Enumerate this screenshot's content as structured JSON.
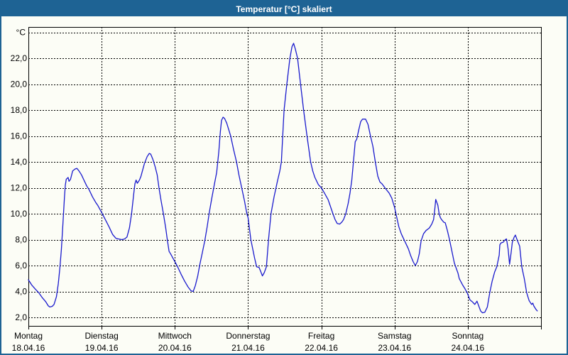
{
  "window": {
    "title": "Temperatur [°C] skaliert",
    "colors": {
      "title_bar": "#1E6394",
      "window_border": "#1E6394",
      "background": "#FCFDF6"
    }
  },
  "chart_data": {
    "type": "line",
    "title": "Temperatur [°C] skaliert",
    "ylabel": "",
    "xlabel": "",
    "grid": "dashed",
    "legend": "none",
    "line_color": "#1A1ACD",
    "grid_color": "#000000",
    "x_unit": "hours_since_monday_00h",
    "x_domain_hours": [
      0,
      168
    ],
    "ylim": [
      1.3,
      24.4
    ],
    "y_axis": {
      "unit_label": "°C",
      "gridline_step": 2,
      "tick_labels": [
        "22,0",
        "20,0",
        "18,0",
        "16,0",
        "14,0",
        "12,0",
        "10,0",
        "8,0",
        "6,0",
        "4,0",
        "2,0"
      ],
      "tick_values": [
        22,
        20,
        18,
        16,
        14,
        12,
        10,
        8,
        6,
        4,
        2
      ],
      "top_gridline_value": 24
    },
    "x_axis": {
      "days": [
        {
          "name": "Montag",
          "date": "18.04.16"
        },
        {
          "name": "Dienstag",
          "date": "19.04.16"
        },
        {
          "name": "Mittwoch",
          "date": "20.04.16"
        },
        {
          "name": "Donnerstag",
          "date": "21.04.16"
        },
        {
          "name": "Freitag",
          "date": "22.04.16"
        },
        {
          "name": "Samstag",
          "date": "23.04.16"
        },
        {
          "name": "Sonntag",
          "date": "24.04.16"
        }
      ]
    },
    "series": [
      {
        "name": "Temperatur",
        "points": [
          [
            0,
            4.9
          ],
          [
            1.1,
            4.5
          ],
          [
            2.2,
            4.2
          ],
          [
            3.4,
            3.9
          ],
          [
            4.6,
            3.5
          ],
          [
            5.7,
            3.2
          ],
          [
            6.5,
            2.9
          ],
          [
            7,
            2.8
          ],
          [
            7.8,
            2.85
          ],
          [
            8.4,
            3
          ],
          [
            9.2,
            3.6
          ],
          [
            9.8,
            4.6
          ],
          [
            10.3,
            5.8
          ],
          [
            10.8,
            7.2
          ],
          [
            11.3,
            9.2
          ],
          [
            11.8,
            11.2
          ],
          [
            12.1,
            12.2
          ],
          [
            12.4,
            12.65
          ],
          [
            13,
            12.8
          ],
          [
            13.3,
            12.5
          ],
          [
            13.8,
            12.65
          ],
          [
            14.5,
            13.3
          ],
          [
            15.3,
            13.45
          ],
          [
            15.9,
            13.5
          ],
          [
            16.6,
            13.3
          ],
          [
            17.4,
            13
          ],
          [
            18.2,
            12.6
          ],
          [
            19.1,
            12.15
          ],
          [
            19.9,
            11.85
          ],
          [
            21,
            11.3
          ],
          [
            22,
            10.9
          ],
          [
            22.7,
            10.65
          ],
          [
            23.4,
            10.35
          ],
          [
            24,
            10.1
          ],
          [
            25.2,
            9.55
          ],
          [
            26.4,
            9
          ],
          [
            27.6,
            8.4
          ],
          [
            28.7,
            8.1
          ],
          [
            29.6,
            8.05
          ],
          [
            30.6,
            8
          ],
          [
            31.5,
            8.05
          ],
          [
            32.3,
            8.2
          ],
          [
            33.1,
            8.9
          ],
          [
            33.8,
            10
          ],
          [
            34.5,
            11.5
          ],
          [
            34.9,
            12.3
          ],
          [
            35.3,
            12.6
          ],
          [
            35.7,
            12.35
          ],
          [
            36.4,
            12.6
          ],
          [
            36.9,
            12.9
          ],
          [
            38,
            13.85
          ],
          [
            38.9,
            14.4
          ],
          [
            39.6,
            14.65
          ],
          [
            40.1,
            14.6
          ],
          [
            40.8,
            14.2
          ],
          [
            41.5,
            13.65
          ],
          [
            42.2,
            13
          ],
          [
            42.8,
            12
          ],
          [
            43.5,
            11
          ],
          [
            44.2,
            10.05
          ],
          [
            45,
            8.9
          ],
          [
            45.5,
            8.05
          ],
          [
            46.1,
            7.1
          ],
          [
            46.6,
            6.9
          ],
          [
            47.3,
            6.6
          ],
          [
            48,
            6.3
          ],
          [
            48.9,
            5.9
          ],
          [
            50,
            5.35
          ],
          [
            51.2,
            4.8
          ],
          [
            52.3,
            4.35
          ],
          [
            53.3,
            4.05
          ],
          [
            54,
            4
          ],
          [
            54.7,
            4.45
          ],
          [
            55.5,
            5.2
          ],
          [
            56.2,
            6.1
          ],
          [
            57,
            7
          ],
          [
            57.8,
            7.9
          ],
          [
            58.6,
            9
          ],
          [
            59.3,
            10.1
          ],
          [
            60.1,
            11.2
          ],
          [
            60.9,
            12.2
          ],
          [
            61.7,
            13.2
          ],
          [
            62.4,
            14.8
          ],
          [
            62.9,
            16.3
          ],
          [
            63.3,
            17.2
          ],
          [
            63.8,
            17.45
          ],
          [
            64.3,
            17.35
          ],
          [
            65,
            17
          ],
          [
            66.3,
            16
          ],
          [
            67.2,
            15
          ],
          [
            68.2,
            14
          ],
          [
            69,
            13
          ],
          [
            69.9,
            12
          ],
          [
            70.8,
            11
          ],
          [
            71.6,
            10
          ],
          [
            72,
            9.7
          ],
          [
            72.9,
            8
          ],
          [
            74.1,
            6.6
          ],
          [
            74.8,
            5.9
          ],
          [
            75.6,
            5.85
          ],
          [
            76.2,
            5.5
          ],
          [
            76.7,
            5.2
          ],
          [
            77.3,
            5.45
          ],
          [
            78,
            5.9
          ],
          [
            78.3,
            6.8
          ],
          [
            78.7,
            8
          ],
          [
            79.5,
            10
          ],
          [
            80.5,
            11.3
          ],
          [
            81.5,
            12.4
          ],
          [
            82.4,
            13.3
          ],
          [
            82.9,
            14
          ],
          [
            83.3,
            15.8
          ],
          [
            83.8,
            18
          ],
          [
            84.7,
            20
          ],
          [
            85.7,
            22
          ],
          [
            86.4,
            22.9
          ],
          [
            86.9,
            23.15
          ],
          [
            87.5,
            22.7
          ],
          [
            88.2,
            22
          ],
          [
            89.2,
            20
          ],
          [
            90.2,
            18
          ],
          [
            91.3,
            16
          ],
          [
            92.5,
            14
          ],
          [
            93.2,
            13.3
          ],
          [
            93.9,
            12.8
          ],
          [
            95,
            12.25
          ],
          [
            96,
            12
          ],
          [
            97,
            11.6
          ],
          [
            98.2,
            11.1
          ],
          [
            99,
            10.55
          ],
          [
            99.8,
            10
          ],
          [
            100.5,
            9.55
          ],
          [
            101.2,
            9.25
          ],
          [
            102,
            9.2
          ],
          [
            102.7,
            9.35
          ],
          [
            103.3,
            9.55
          ],
          [
            104,
            10
          ],
          [
            104.8,
            10.8
          ],
          [
            105.4,
            11.6
          ],
          [
            106,
            12.6
          ],
          [
            106.6,
            14.2
          ],
          [
            107.1,
            15.55
          ],
          [
            107.6,
            15.75
          ],
          [
            108.2,
            16.4
          ],
          [
            108.9,
            17.1
          ],
          [
            109.5,
            17.3
          ],
          [
            110.5,
            17.3
          ],
          [
            111.3,
            16.9
          ],
          [
            112.1,
            16
          ],
          [
            112.9,
            15.2
          ],
          [
            113.7,
            14
          ],
          [
            114.5,
            12.9
          ],
          [
            115.2,
            12.45
          ],
          [
            115.9,
            12.3
          ],
          [
            117,
            11.95
          ],
          [
            118.2,
            11.6
          ],
          [
            119.1,
            11.2
          ],
          [
            119.6,
            10.8
          ],
          [
            120,
            10.5
          ],
          [
            120.7,
            9.75
          ],
          [
            121.4,
            9
          ],
          [
            122.2,
            8.45
          ],
          [
            123.3,
            7.9
          ],
          [
            124.5,
            7.3
          ],
          [
            125.3,
            6.75
          ],
          [
            126.1,
            6.3
          ],
          [
            126.8,
            6
          ],
          [
            127.5,
            6.3
          ],
          [
            128.1,
            6.9
          ],
          [
            128.7,
            7.9
          ],
          [
            129.5,
            8.45
          ],
          [
            130.3,
            8.7
          ],
          [
            131.4,
            8.9
          ],
          [
            132.2,
            9.2
          ],
          [
            132.8,
            9.55
          ],
          [
            133.2,
            10.35
          ],
          [
            133.5,
            11.1
          ],
          [
            134.2,
            10.65
          ],
          [
            134.6,
            10
          ],
          [
            135,
            9.7
          ],
          [
            135.4,
            9.55
          ],
          [
            136.1,
            9.35
          ],
          [
            136.6,
            9.3
          ],
          [
            137.3,
            8.7
          ],
          [
            138,
            8
          ],
          [
            138.8,
            7.1
          ],
          [
            139.6,
            6.2
          ],
          [
            140.2,
            5.8
          ],
          [
            140.8,
            5.4
          ],
          [
            141.2,
            5
          ],
          [
            142.3,
            4.5
          ],
          [
            143.1,
            4.2
          ],
          [
            143.8,
            3.9
          ],
          [
            144.7,
            3.35
          ],
          [
            145.5,
            3.2
          ],
          [
            146.3,
            3
          ],
          [
            147,
            3.25
          ],
          [
            147.4,
            3
          ],
          [
            148.2,
            2.5
          ],
          [
            148.8,
            2.35
          ],
          [
            149.6,
            2.4
          ],
          [
            150.4,
            2.8
          ],
          [
            151.2,
            3.9
          ],
          [
            152,
            4.8
          ],
          [
            152.8,
            5.5
          ],
          [
            153.5,
            5.9
          ],
          [
            154.3,
            6.8
          ],
          [
            154.5,
            7.6
          ],
          [
            154.9,
            7.75
          ],
          [
            155.6,
            7.8
          ],
          [
            156.3,
            8
          ],
          [
            156.7,
            8.05
          ],
          [
            157.2,
            7.3
          ],
          [
            157.7,
            6.1
          ],
          [
            158.2,
            7
          ],
          [
            158.6,
            7.8
          ],
          [
            159.2,
            8.2
          ],
          [
            159.6,
            8.35
          ],
          [
            160.3,
            7.9
          ],
          [
            161,
            7.5
          ],
          [
            161.7,
            5.9
          ],
          [
            162.5,
            5
          ],
          [
            163.3,
            3.9
          ],
          [
            164.1,
            3.3
          ],
          [
            164.9,
            3
          ],
          [
            165.3,
            3.1
          ],
          [
            165.6,
            2.9
          ],
          [
            166.4,
            2.6
          ],
          [
            166.8,
            2.5
          ]
        ]
      }
    ]
  }
}
